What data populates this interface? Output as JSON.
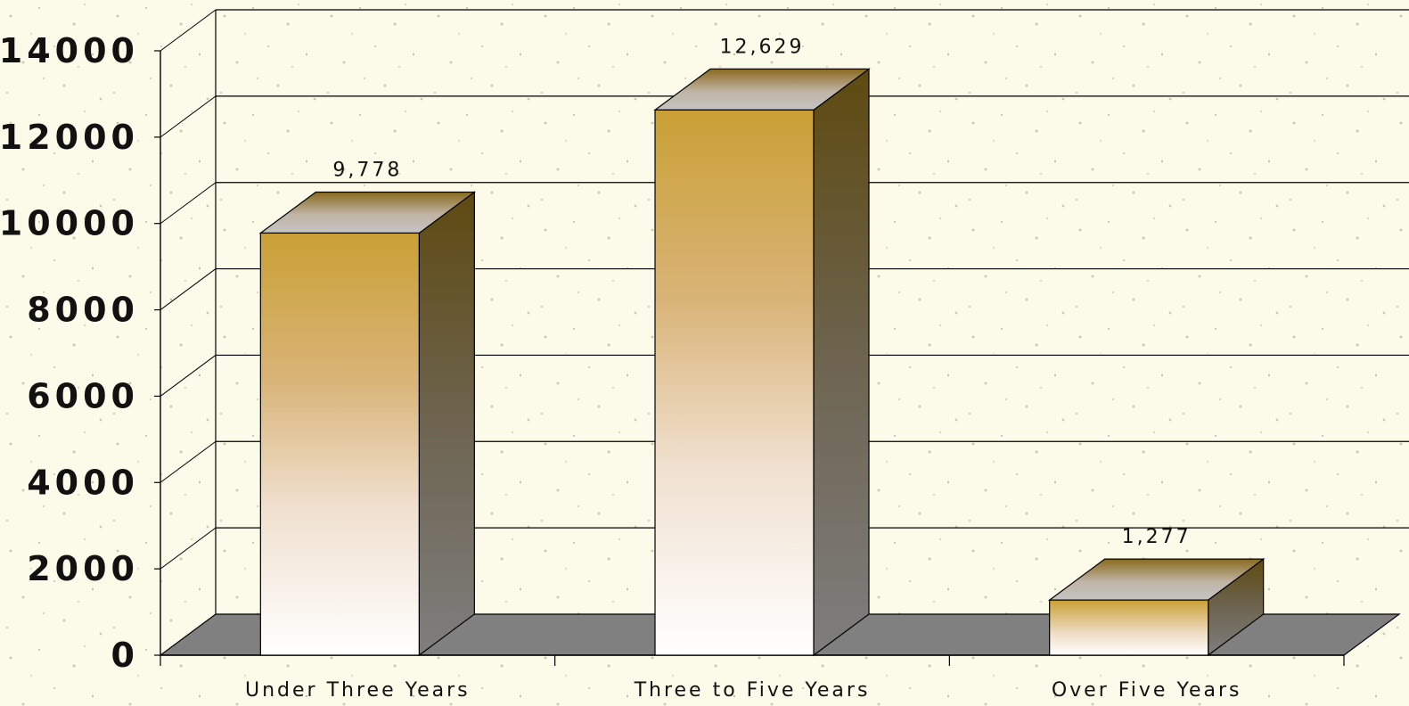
{
  "chart_data": {
    "type": "bar",
    "categories": [
      "Under Three Years",
      "Three to Five Years",
      "Over Five Years"
    ],
    "values": [
      9778,
      12629,
      1277
    ],
    "data_labels": [
      "9,778",
      "12,629",
      "1,277"
    ],
    "y_ticks": [
      "0",
      "2000",
      "4000",
      "6000",
      "8000",
      "10000",
      "12000",
      "14000"
    ],
    "ylim": [
      0,
      14000
    ],
    "grid": true,
    "style": "3d-column",
    "colors": {
      "bar_top": "#caa035",
      "bar_bottom": "#ffffff",
      "side_dark": "#5e4a10",
      "side_light": "#7c7c7c",
      "floor": "#808080",
      "background": "#fcfbe9",
      "grid": "#000000"
    }
  }
}
